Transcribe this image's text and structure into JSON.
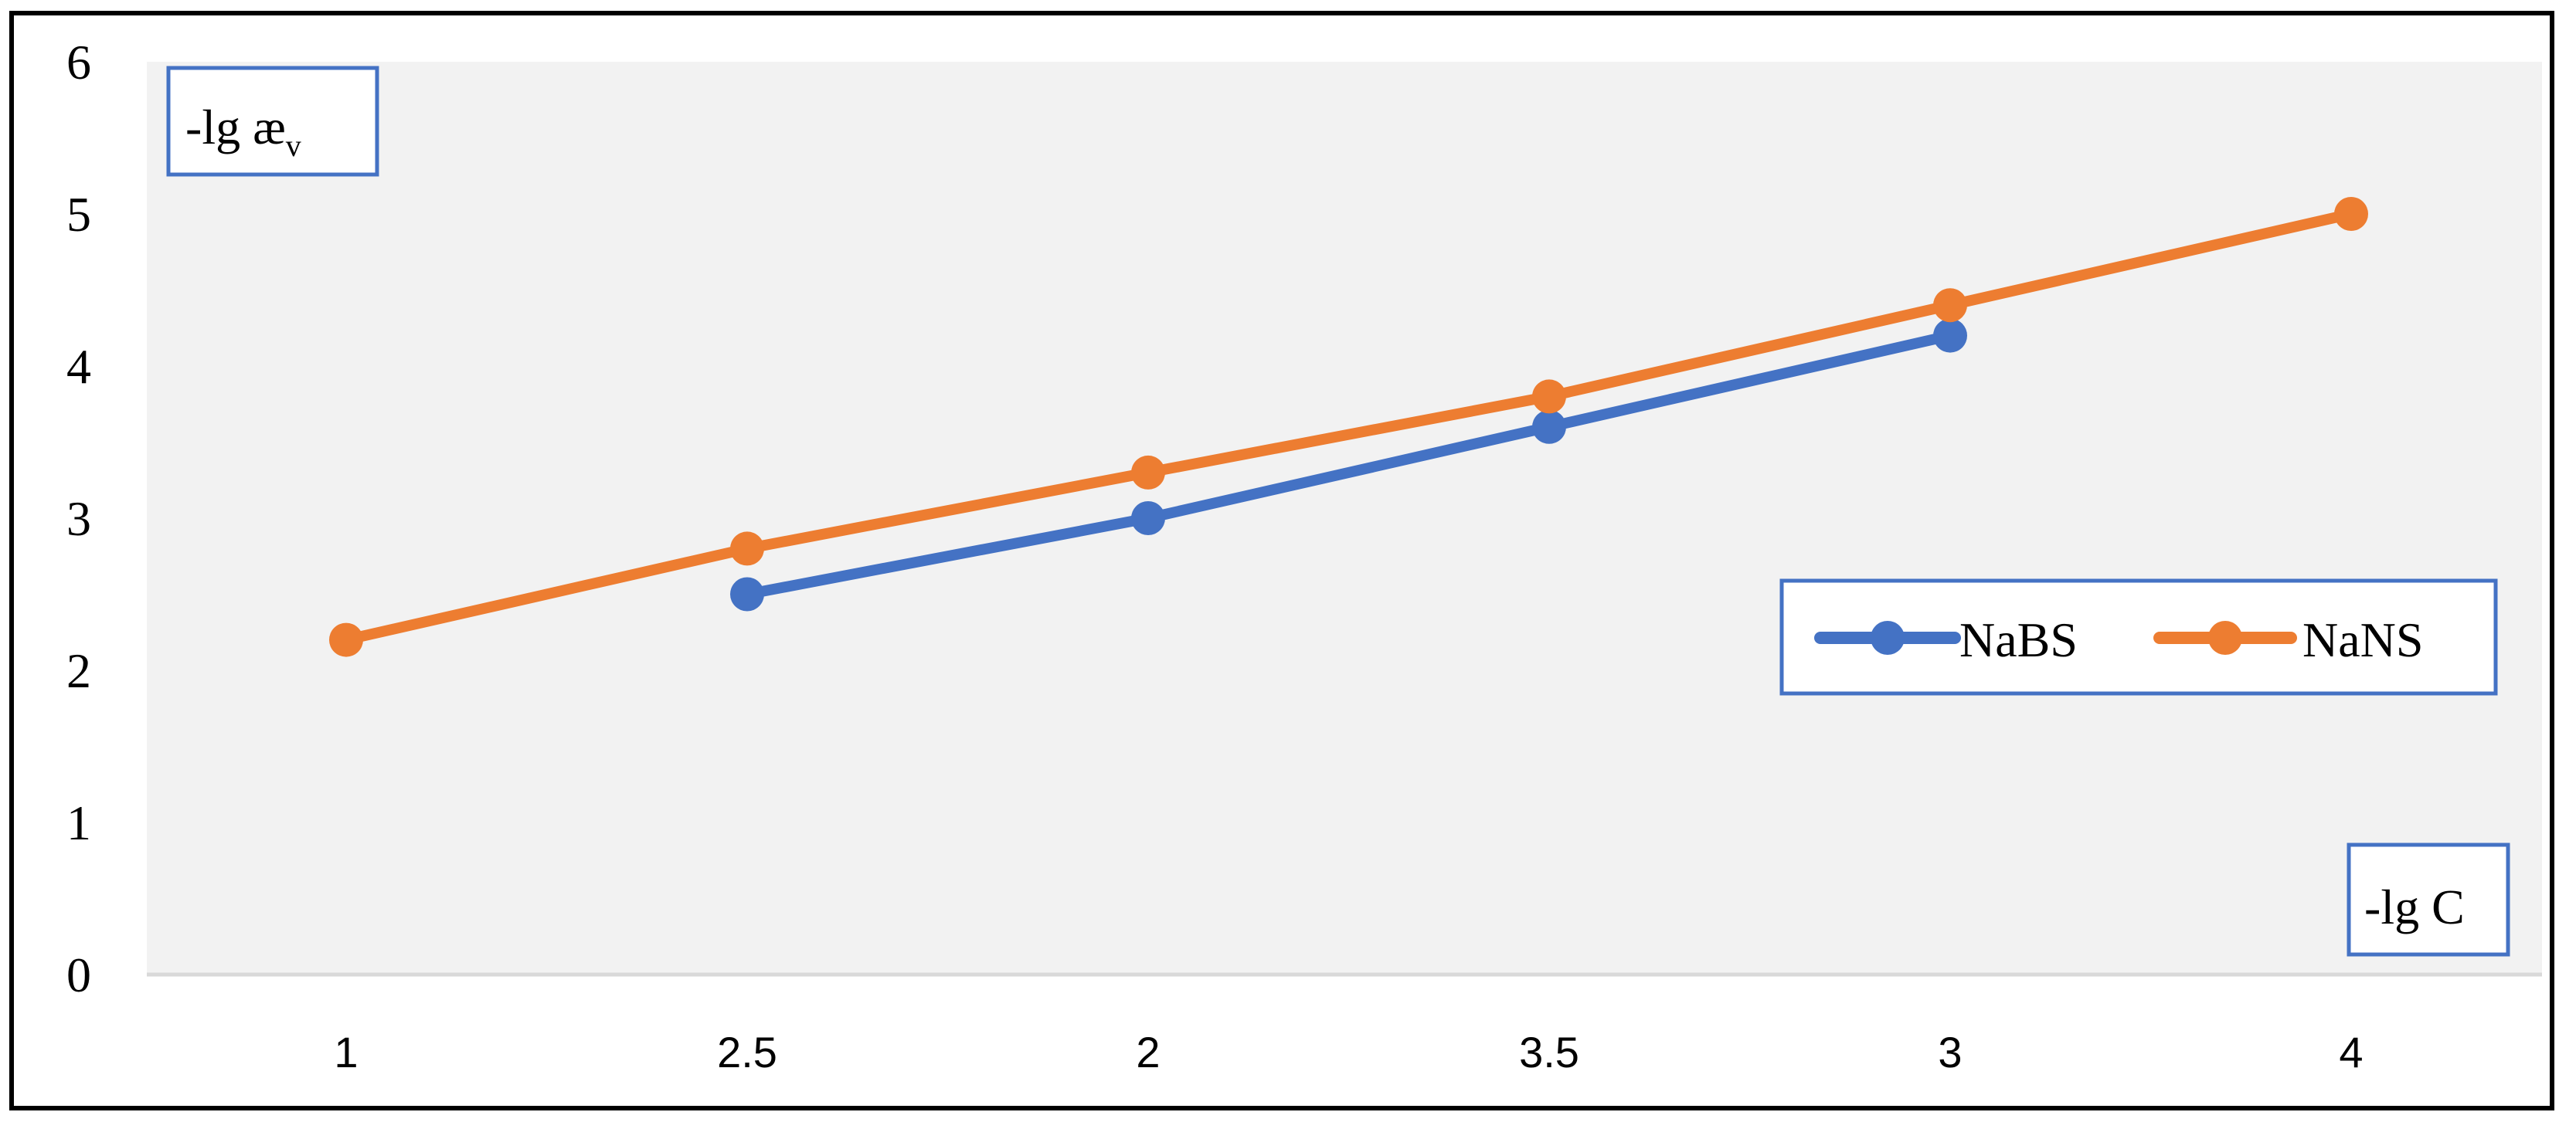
{
  "chart_data": {
    "type": "line",
    "categories": [
      "1",
      "2.5",
      "2",
      "3.5",
      "3",
      "4"
    ],
    "series": [
      {
        "name": "NaBS",
        "color": "#4472C4",
        "values": [
          null,
          2.5,
          3.0,
          3.6,
          4.2,
          null
        ]
      },
      {
        "name": "NaNS",
        "color": "#ED7D31",
        "values": [
          2.2,
          2.8,
          3.3,
          3.8,
          4.4,
          5.0
        ]
      }
    ],
    "ylim": [
      0,
      6
    ],
    "yticks": [
      0,
      1,
      2,
      3,
      4,
      5,
      6
    ],
    "ylabel": "-lg æ",
    "ylabel_sub": "v",
    "xlabel": "-lg C",
    "legend_position": "right",
    "grid": false,
    "plot_background": "#F2F2F2"
  }
}
